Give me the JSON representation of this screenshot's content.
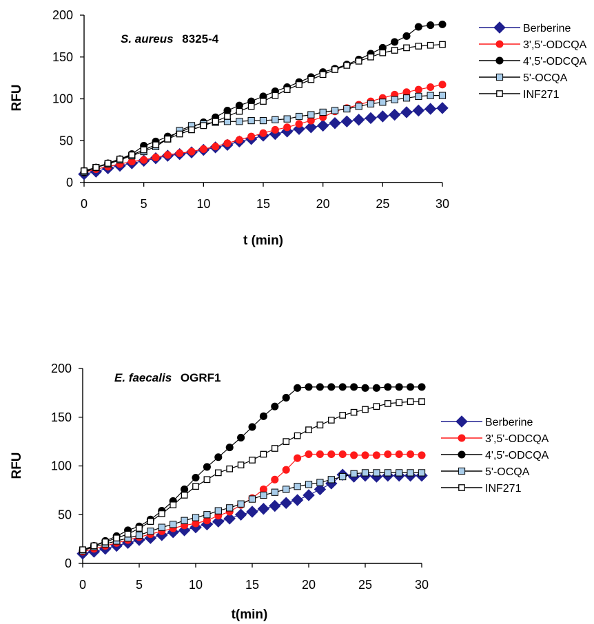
{
  "colors": {
    "berberine": "#1f1f8f",
    "odcqa35": "#ff1a1a",
    "odcqa45": "#000000",
    "ocqa5": "#a9cdea",
    "inf271": "#ffffff",
    "axis": "#000000"
  },
  "chart_data": [
    {
      "type": "line",
      "title": "S. aureus 8325-4",
      "title_italic": "S. aureus",
      "title_plain": "8325-4",
      "xlabel": "t (min)",
      "ylabel": "RFU",
      "xlim": [
        0,
        30
      ],
      "ylim": [
        0,
        200
      ],
      "xticks": [
        0,
        5,
        10,
        15,
        20,
        25,
        30
      ],
      "yticks": [
        0,
        50,
        100,
        150,
        200
      ],
      "grid": false,
      "legend_position": "right",
      "x": [
        0,
        1,
        2,
        3,
        4,
        5,
        6,
        7,
        8,
        9,
        10,
        11,
        12,
        13,
        14,
        15,
        16,
        17,
        18,
        19,
        20,
        21,
        22,
        23,
        24,
        25,
        26,
        27,
        28,
        29,
        30
      ],
      "series": [
        {
          "name": "Berberine",
          "marker": "diamond",
          "color": "#1f1f8f",
          "values": [
            10,
            13,
            17,
            20,
            23,
            26,
            29,
            32,
            34,
            36,
            39,
            42,
            45,
            49,
            52,
            56,
            58,
            61,
            64,
            66,
            68,
            71,
            73,
            75,
            77,
            79,
            81,
            84,
            86,
            88,
            89
          ]
        },
        {
          "name": "3',5'-ODCQA",
          "marker": "circle",
          "color": "#ff1a1a",
          "values": [
            12,
            16,
            19,
            22,
            25,
            27,
            30,
            33,
            35,
            37,
            40,
            43,
            47,
            51,
            55,
            59,
            63,
            66,
            70,
            74,
            78,
            85,
            89,
            93,
            97,
            101,
            105,
            108,
            111,
            114,
            117
          ]
        },
        {
          "name": "4',5'-ODCQA",
          "marker": "circle",
          "color": "#000000",
          "values": [
            12,
            18,
            23,
            28,
            34,
            44,
            49,
            55,
            60,
            66,
            72,
            78,
            86,
            92,
            97,
            103,
            109,
            114,
            120,
            126,
            132,
            136,
            141,
            147,
            154,
            161,
            168,
            175,
            186,
            188,
            189
          ]
        },
        {
          "name": "5'-OCQA",
          "marker": "square",
          "color": "#a9cdea",
          "values": [
            13,
            18,
            22,
            27,
            32,
            37,
            43,
            52,
            62,
            68,
            70,
            72,
            73,
            73,
            74,
            74,
            75,
            76,
            79,
            81,
            84,
            86,
            88,
            91,
            94,
            96,
            99,
            101,
            103,
            104,
            104
          ]
        },
        {
          "name": "INF271",
          "marker": "square-open",
          "color": "#ffffff",
          "values": [
            14,
            18,
            23,
            28,
            33,
            39,
            45,
            52,
            58,
            63,
            68,
            73,
            79,
            85,
            91,
            97,
            104,
            111,
            117,
            123,
            129,
            135,
            140,
            145,
            150,
            155,
            158,
            161,
            163,
            164,
            165
          ]
        }
      ]
    },
    {
      "type": "line",
      "title": "E. faecalis OGRF1",
      "title_italic": "E. faecalis",
      "title_plain": "OGRF1",
      "xlabel": "t(min)",
      "ylabel": "RFU",
      "xlim": [
        0,
        30
      ],
      "ylim": [
        0,
        200
      ],
      "xticks": [
        0,
        5,
        10,
        15,
        20,
        25,
        30
      ],
      "yticks": [
        0,
        50,
        100,
        150,
        200
      ],
      "grid": false,
      "legend_position": "right",
      "x": [
        0,
        1,
        2,
        3,
        4,
        5,
        6,
        7,
        8,
        9,
        10,
        11,
        12,
        13,
        14,
        15,
        16,
        17,
        18,
        19,
        20,
        21,
        22,
        23,
        24,
        25,
        26,
        27,
        28,
        29,
        30
      ],
      "series": [
        {
          "name": "Berberine",
          "marker": "diamond",
          "color": "#1f1f8f",
          "values": [
            10,
            12,
            15,
            18,
            21,
            24,
            26,
            29,
            32,
            34,
            37,
            40,
            43,
            46,
            50,
            53,
            56,
            59,
            62,
            65,
            70,
            76,
            82,
            91,
            89,
            90,
            89,
            90,
            90,
            90,
            90
          ]
        },
        {
          "name": "3',5'-ODCQA",
          "marker": "circle",
          "color": "#ff1a1a",
          "values": [
            12,
            15,
            18,
            21,
            24,
            27,
            30,
            33,
            36,
            39,
            41,
            44,
            49,
            53,
            60,
            67,
            76,
            86,
            96,
            108,
            112,
            112,
            112,
            112,
            111,
            111,
            111,
            112,
            112,
            112,
            111
          ]
        },
        {
          "name": "4',5'-ODCQA",
          "marker": "circle",
          "color": "#000000",
          "values": [
            13,
            18,
            23,
            28,
            34,
            38,
            45,
            54,
            64,
            76,
            88,
            99,
            109,
            119,
            129,
            140,
            151,
            161,
            170,
            180,
            181,
            181,
            181,
            181,
            181,
            180,
            180,
            181,
            181,
            181,
            181
          ]
        },
        {
          "name": "5'-OCQA",
          "marker": "square",
          "color": "#a9cdea",
          "values": [
            13,
            17,
            20,
            23,
            26,
            29,
            33,
            37,
            40,
            44,
            47,
            50,
            54,
            57,
            61,
            66,
            70,
            73,
            76,
            79,
            81,
            83,
            86,
            89,
            92,
            93,
            93,
            93,
            93,
            93,
            93
          ]
        },
        {
          "name": "INF271",
          "marker": "square-open",
          "color": "#ffffff",
          "values": [
            14,
            18,
            22,
            26,
            30,
            36,
            43,
            51,
            60,
            70,
            79,
            86,
            93,
            97,
            101,
            106,
            112,
            118,
            125,
            131,
            137,
            142,
            147,
            152,
            155,
            158,
            161,
            164,
            165,
            166,
            166
          ]
        }
      ]
    }
  ]
}
